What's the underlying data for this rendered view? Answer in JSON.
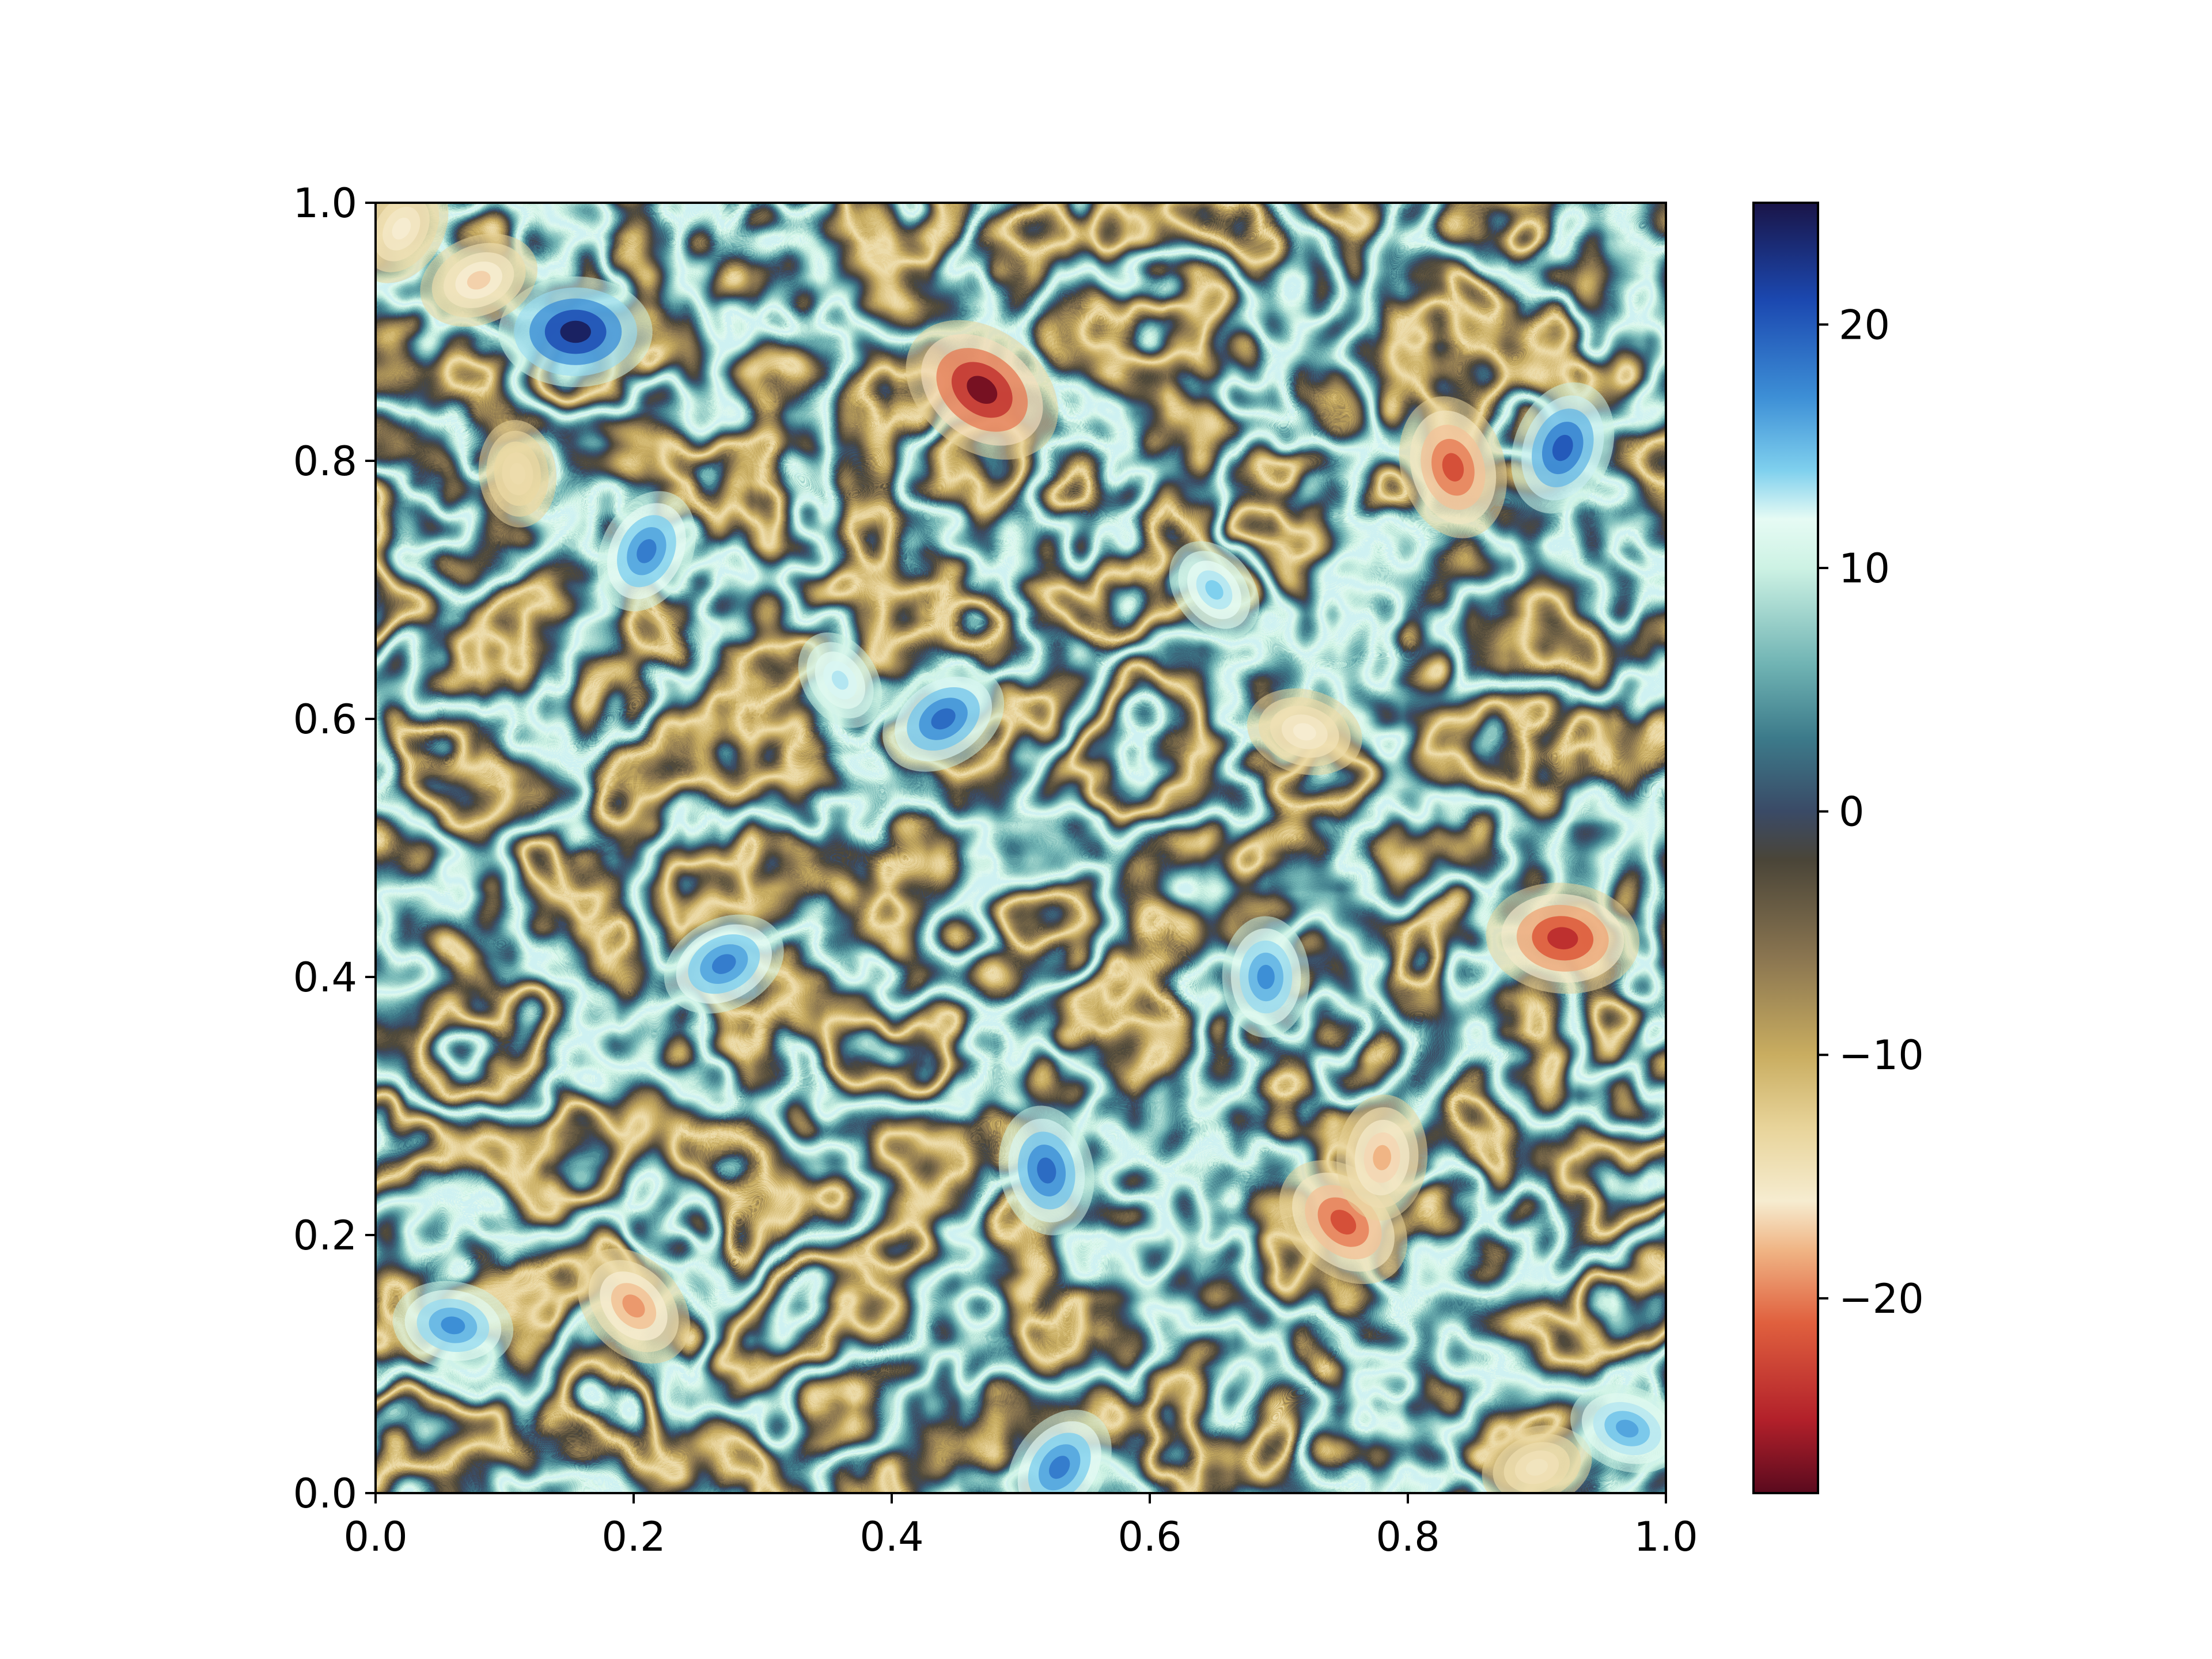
{
  "chart_data": {
    "type": "heatmap",
    "title": "",
    "xlabel": "",
    "ylabel": "",
    "xlim": [
      0.0,
      1.0
    ],
    "ylim": [
      0.0,
      1.0
    ],
    "x_ticks": [
      "0.0",
      "0.2",
      "0.4",
      "0.6",
      "0.8",
      "1.0"
    ],
    "y_ticks": [
      "0.0",
      "0.2",
      "0.4",
      "0.6",
      "0.8",
      "1.0"
    ],
    "grid": false,
    "field": "2D turbulent vorticity field with interleaved filaments and coherent vortices",
    "colorbar": {
      "range": [
        -28,
        25
      ],
      "ticks": [
        "20",
        "10",
        "0",
        "−10",
        "−20"
      ],
      "tick_values": [
        20,
        10,
        0,
        -10,
        -20
      ],
      "colormap_stops": [
        {
          "value": -28,
          "color": "#5a0a1e"
        },
        {
          "value": -25,
          "color": "#b2202a"
        },
        {
          "value": -21,
          "color": "#e0603e"
        },
        {
          "value": -18,
          "color": "#f0b585"
        },
        {
          "value": -16,
          "color": "#f6ecd0"
        },
        {
          "value": -13,
          "color": "#e8d49a"
        },
        {
          "value": -10,
          "color": "#c9ad60"
        },
        {
          "value": -6,
          "color": "#8a7550"
        },
        {
          "value": -2,
          "color": "#4a4538"
        },
        {
          "value": 0,
          "color": "#3a4a66"
        },
        {
          "value": 3,
          "color": "#3c7a8a"
        },
        {
          "value": 6,
          "color": "#6fb3b3"
        },
        {
          "value": 10,
          "color": "#cdf2e4"
        },
        {
          "value": 12,
          "color": "#e6fbf4"
        },
        {
          "value": 14,
          "color": "#7fd0ee"
        },
        {
          "value": 17,
          "color": "#3d8fd6"
        },
        {
          "value": 21,
          "color": "#1b48b0"
        },
        {
          "value": 25,
          "color": "#1a1548"
        }
      ]
    },
    "vortices": [
      {
        "x": 0.155,
        "y": 0.9,
        "value": 24
      },
      {
        "x": 0.47,
        "y": 0.855,
        "value": -27
      },
      {
        "x": 0.835,
        "y": 0.795,
        "value": -22
      },
      {
        "x": 0.92,
        "y": 0.81,
        "value": 20
      },
      {
        "x": 0.44,
        "y": 0.6,
        "value": 19
      },
      {
        "x": 0.92,
        "y": 0.43,
        "value": -24
      },
      {
        "x": 0.75,
        "y": 0.21,
        "value": -22
      },
      {
        "x": 0.52,
        "y": 0.25,
        "value": 19
      },
      {
        "x": 0.21,
        "y": 0.73,
        "value": 18
      },
      {
        "x": 0.27,
        "y": 0.41,
        "value": 18
      },
      {
        "x": 0.06,
        "y": 0.13,
        "value": 17
      },
      {
        "x": 0.2,
        "y": 0.145,
        "value": -19
      },
      {
        "x": 0.11,
        "y": 0.79,
        "value": -14
      },
      {
        "x": 0.02,
        "y": 0.98,
        "value": -16
      },
      {
        "x": 0.08,
        "y": 0.94,
        "value": -17
      },
      {
        "x": 0.72,
        "y": 0.59,
        "value": -16
      },
      {
        "x": 0.65,
        "y": 0.7,
        "value": 14
      },
      {
        "x": 0.69,
        "y": 0.4,
        "value": 17
      },
      {
        "x": 0.53,
        "y": 0.02,
        "value": 18
      },
      {
        "x": 0.9,
        "y": 0.02,
        "value": -15
      },
      {
        "x": 0.97,
        "y": 0.05,
        "value": 16
      },
      {
        "x": 0.36,
        "y": 0.63,
        "value": 13
      },
      {
        "x": 0.78,
        "y": 0.26,
        "value": -18
      }
    ]
  }
}
